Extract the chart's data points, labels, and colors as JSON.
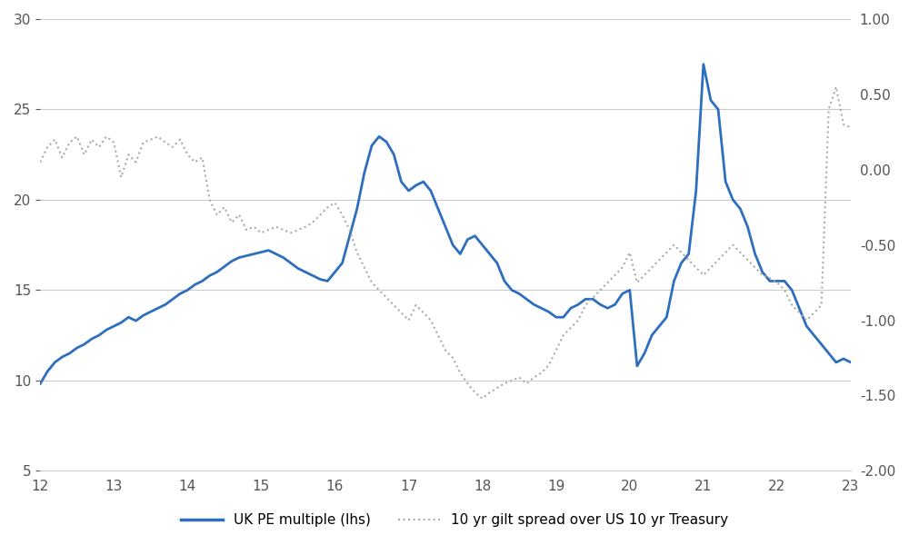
{
  "title": "",
  "xlabel": "",
  "ylabel_left": "",
  "ylabel_right": "",
  "xlim": [
    12,
    23
  ],
  "ylim_left": [
    5,
    30
  ],
  "ylim_right": [
    -2.0,
    1.0
  ],
  "xticks": [
    12,
    13,
    14,
    15,
    16,
    17,
    18,
    19,
    20,
    21,
    22,
    23
  ],
  "yticks_left": [
    5,
    10,
    15,
    20,
    25,
    30
  ],
  "yticks_right": [
    -2.0,
    -1.5,
    -1.0,
    -0.5,
    0.0,
    0.5,
    1.0
  ],
  "legend_labels": [
    "UK PE multiple (lhs)",
    "10 yr gilt spread over US 10 yr Treasury"
  ],
  "line1_color": "#2E6EBF",
  "line2_color": "#AAAAAA",
  "background_color": "#FFFFFF",
  "grid_color": "#CCCCCC",
  "pe_data": {
    "x": [
      12.0,
      12.1,
      12.2,
      12.3,
      12.4,
      12.5,
      12.6,
      12.7,
      12.8,
      12.9,
      13.0,
      13.1,
      13.2,
      13.3,
      13.4,
      13.5,
      13.6,
      13.7,
      13.8,
      13.9,
      14.0,
      14.1,
      14.2,
      14.3,
      14.4,
      14.5,
      14.6,
      14.7,
      14.8,
      14.9,
      15.0,
      15.1,
      15.2,
      15.3,
      15.4,
      15.5,
      15.6,
      15.7,
      15.8,
      15.9,
      16.0,
      16.1,
      16.2,
      16.3,
      16.4,
      16.5,
      16.6,
      16.7,
      16.8,
      16.9,
      17.0,
      17.1,
      17.2,
      17.3,
      17.4,
      17.5,
      17.6,
      17.7,
      17.8,
      17.9,
      18.0,
      18.1,
      18.2,
      18.3,
      18.4,
      18.5,
      18.6,
      18.7,
      18.8,
      18.9,
      19.0,
      19.1,
      19.2,
      19.3,
      19.4,
      19.5,
      19.6,
      19.7,
      19.8,
      19.9,
      20.0,
      20.1,
      20.2,
      20.3,
      20.4,
      20.5,
      20.6,
      20.7,
      20.8,
      20.9,
      21.0,
      21.1,
      21.2,
      21.3,
      21.4,
      21.5,
      21.6,
      21.7,
      21.8,
      21.9,
      22.0,
      22.1,
      22.2,
      22.3,
      22.4,
      22.5,
      22.6,
      22.7,
      22.8,
      22.9,
      23.0
    ],
    "y": [
      9.8,
      10.5,
      11.0,
      11.3,
      11.5,
      11.8,
      12.0,
      12.3,
      12.5,
      12.8,
      13.0,
      13.2,
      13.5,
      13.3,
      13.6,
      13.8,
      14.0,
      14.2,
      14.5,
      14.8,
      15.0,
      15.3,
      15.5,
      15.8,
      16.0,
      16.3,
      16.6,
      16.8,
      16.9,
      17.0,
      17.1,
      17.2,
      17.0,
      16.8,
      16.5,
      16.2,
      16.0,
      15.8,
      15.6,
      15.5,
      16.0,
      16.5,
      18.0,
      19.5,
      21.5,
      23.0,
      23.5,
      23.2,
      22.5,
      21.0,
      20.5,
      20.8,
      21.0,
      20.5,
      19.5,
      18.5,
      17.5,
      17.0,
      17.8,
      18.0,
      17.5,
      17.0,
      16.5,
      15.5,
      15.0,
      14.8,
      14.5,
      14.2,
      14.0,
      13.8,
      13.5,
      13.5,
      14.0,
      14.2,
      14.5,
      14.5,
      14.2,
      14.0,
      14.2,
      14.8,
      15.0,
      10.8,
      11.5,
      12.5,
      13.0,
      13.5,
      15.5,
      16.5,
      17.0,
      20.5,
      27.5,
      25.5,
      25.0,
      21.0,
      20.0,
      19.5,
      18.5,
      17.0,
      16.0,
      15.5,
      15.5,
      15.5,
      15.0,
      14.0,
      13.0,
      12.5,
      12.0,
      11.5,
      11.0,
      11.2,
      11.0
    ]
  },
  "spread_data": {
    "x": [
      12.0,
      12.1,
      12.2,
      12.3,
      12.4,
      12.5,
      12.6,
      12.7,
      12.8,
      12.9,
      13.0,
      13.1,
      13.2,
      13.3,
      13.4,
      13.5,
      13.6,
      13.7,
      13.8,
      13.9,
      14.0,
      14.1,
      14.2,
      14.3,
      14.4,
      14.5,
      14.6,
      14.7,
      14.8,
      14.9,
      15.0,
      15.1,
      15.2,
      15.3,
      15.4,
      15.5,
      15.6,
      15.7,
      15.8,
      15.9,
      16.0,
      16.1,
      16.2,
      16.3,
      16.4,
      16.5,
      16.6,
      16.7,
      16.8,
      16.9,
      17.0,
      17.1,
      17.2,
      17.3,
      17.4,
      17.5,
      17.6,
      17.7,
      17.8,
      17.9,
      18.0,
      18.1,
      18.2,
      18.3,
      18.4,
      18.5,
      18.6,
      18.7,
      18.8,
      18.9,
      19.0,
      19.1,
      19.2,
      19.3,
      19.4,
      19.5,
      19.6,
      19.7,
      19.8,
      19.9,
      20.0,
      20.1,
      20.2,
      20.3,
      20.4,
      20.5,
      20.6,
      20.7,
      20.8,
      20.9,
      21.0,
      21.1,
      21.2,
      21.3,
      21.4,
      21.5,
      21.6,
      21.7,
      21.8,
      21.9,
      22.0,
      22.1,
      22.2,
      22.3,
      22.4,
      22.5,
      22.6,
      22.7,
      22.8,
      22.9,
      23.0
    ],
    "y": [
      0.05,
      0.15,
      0.2,
      0.08,
      0.18,
      0.22,
      0.1,
      0.2,
      0.15,
      0.22,
      0.18,
      -0.05,
      0.1,
      0.05,
      0.18,
      0.2,
      0.22,
      0.18,
      0.15,
      0.2,
      0.1,
      0.05,
      0.08,
      -0.2,
      -0.3,
      -0.25,
      -0.35,
      -0.3,
      -0.4,
      -0.38,
      -0.42,
      -0.4,
      -0.38,
      -0.4,
      -0.42,
      -0.4,
      -0.38,
      -0.35,
      -0.3,
      -0.25,
      -0.22,
      -0.3,
      -0.4,
      -0.55,
      -0.65,
      -0.75,
      -0.8,
      -0.85,
      -0.9,
      -0.95,
      -1.0,
      -0.9,
      -0.95,
      -1.0,
      -1.1,
      -1.2,
      -1.25,
      -1.35,
      -1.42,
      -1.48,
      -1.52,
      -1.48,
      -1.45,
      -1.42,
      -1.4,
      -1.38,
      -1.42,
      -1.38,
      -1.35,
      -1.3,
      -1.2,
      -1.1,
      -1.05,
      -1.0,
      -0.9,
      -0.85,
      -0.8,
      -0.75,
      -0.7,
      -0.65,
      -0.55,
      -0.75,
      -0.7,
      -0.65,
      -0.6,
      -0.55,
      -0.5,
      -0.55,
      -0.6,
      -0.65,
      -0.7,
      -0.65,
      -0.6,
      -0.55,
      -0.5,
      -0.55,
      -0.6,
      -0.65,
      -0.7,
      -0.72,
      -0.75,
      -0.8,
      -0.9,
      -0.95,
      -1.0,
      -0.95,
      -0.9,
      0.4,
      0.55,
      0.3,
      0.28
    ]
  }
}
